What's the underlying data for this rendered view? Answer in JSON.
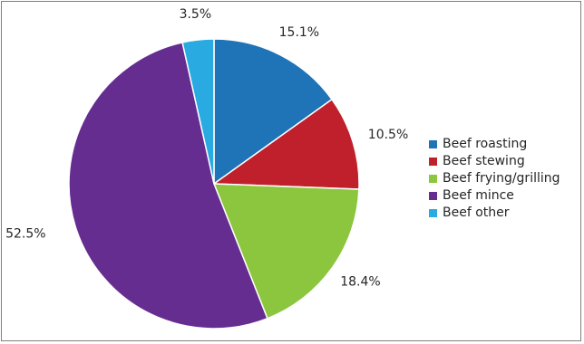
{
  "chart_data": {
    "type": "pie",
    "title": "",
    "labels": [
      "Beef roasting",
      "Beef stewing",
      "Beef frying/grilling",
      "Beef mince",
      "Beef other"
    ],
    "values": [
      15.1,
      10.5,
      18.4,
      52.5,
      3.5
    ],
    "value_labels": [
      "15.1%",
      "10.5%",
      "18.4%",
      "52.5%",
      "3.5%"
    ],
    "colors": [
      "#1f73b7",
      "#c0202c",
      "#8cc63f",
      "#662d91",
      "#29abe2"
    ],
    "start_angle_deg": 0,
    "direction": "clockwise",
    "legend_position": "right"
  }
}
